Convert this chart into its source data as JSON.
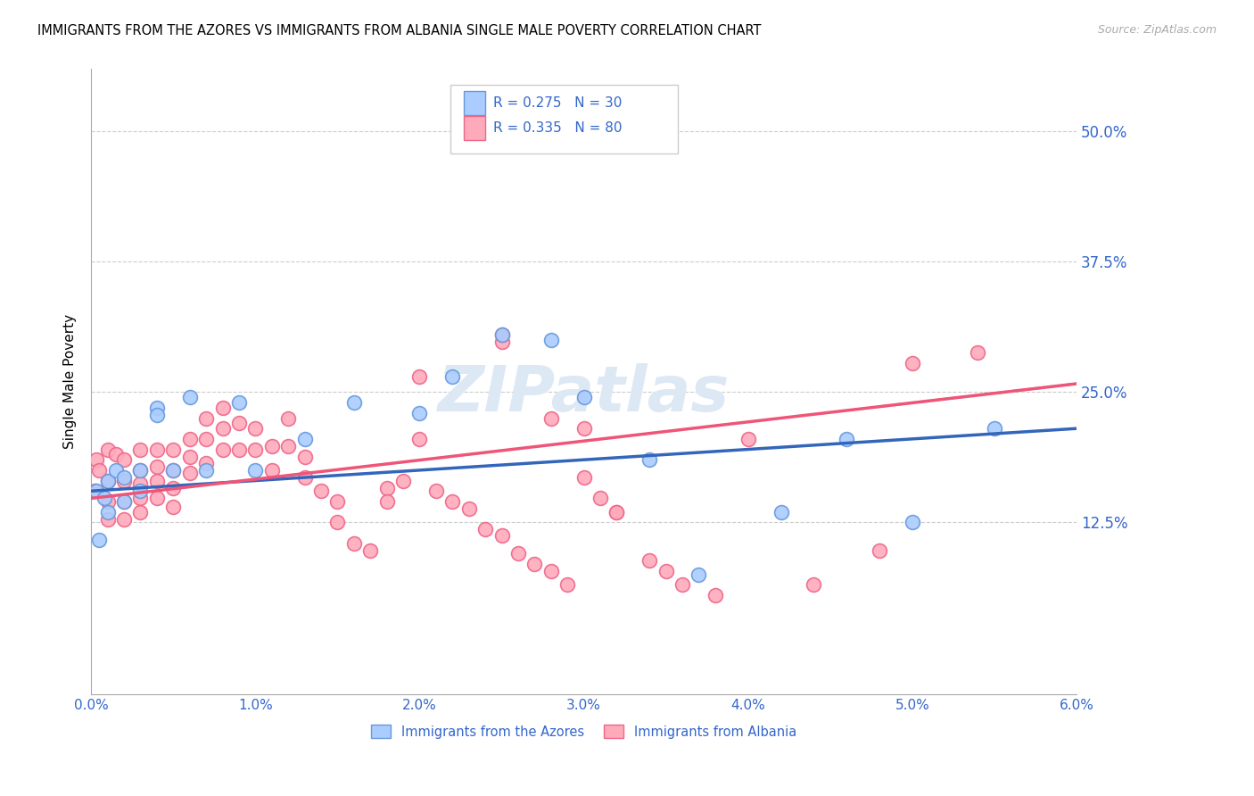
{
  "title": "IMMIGRANTS FROM THE AZORES VS IMMIGRANTS FROM ALBANIA SINGLE MALE POVERTY CORRELATION CHART",
  "source": "Source: ZipAtlas.com",
  "ylabel": "Single Male Poverty",
  "legend_azores": "Immigrants from the Azores",
  "legend_albania": "Immigrants from Albania",
  "azores_R": 0.275,
  "azores_N": 30,
  "albania_R": 0.335,
  "albania_N": 80,
  "color_azores_fill": "#aaccff",
  "color_azores_edge": "#6699dd",
  "color_albania_fill": "#ffaabb",
  "color_albania_edge": "#ee6688",
  "line_color_azores": "#3366bb",
  "line_color_albania": "#ee5577",
  "xlim": [
    0.0,
    0.06
  ],
  "ylim": [
    -0.04,
    0.56
  ],
  "xtick_labels": [
    "0.0%",
    "1.0%",
    "2.0%",
    "3.0%",
    "4.0%",
    "5.0%",
    "6.0%"
  ],
  "ytick_labels": [
    "12.5%",
    "25.0%",
    "37.5%",
    "50.0%"
  ],
  "azores_x": [
    0.0003,
    0.0005,
    0.0008,
    0.001,
    0.001,
    0.0015,
    0.002,
    0.002,
    0.003,
    0.003,
    0.004,
    0.004,
    0.005,
    0.006,
    0.007,
    0.009,
    0.01,
    0.013,
    0.016,
    0.02,
    0.022,
    0.025,
    0.028,
    0.03,
    0.034,
    0.037,
    0.042,
    0.046,
    0.05,
    0.055
  ],
  "azores_y": [
    0.155,
    0.108,
    0.148,
    0.165,
    0.135,
    0.175,
    0.168,
    0.145,
    0.175,
    0.155,
    0.235,
    0.228,
    0.175,
    0.245,
    0.175,
    0.24,
    0.175,
    0.205,
    0.24,
    0.23,
    0.265,
    0.305,
    0.3,
    0.245,
    0.185,
    0.075,
    0.135,
    0.205,
    0.125,
    0.215
  ],
  "albania_x": [
    0.0002,
    0.0003,
    0.0005,
    0.001,
    0.001,
    0.001,
    0.001,
    0.0015,
    0.002,
    0.002,
    0.002,
    0.002,
    0.003,
    0.003,
    0.003,
    0.003,
    0.003,
    0.004,
    0.004,
    0.004,
    0.004,
    0.005,
    0.005,
    0.005,
    0.005,
    0.006,
    0.006,
    0.006,
    0.007,
    0.007,
    0.007,
    0.008,
    0.008,
    0.008,
    0.009,
    0.009,
    0.01,
    0.01,
    0.011,
    0.011,
    0.012,
    0.012,
    0.013,
    0.013,
    0.014,
    0.015,
    0.015,
    0.016,
    0.017,
    0.018,
    0.018,
    0.019,
    0.02,
    0.021,
    0.022,
    0.023,
    0.024,
    0.025,
    0.025,
    0.026,
    0.027,
    0.028,
    0.029,
    0.03,
    0.031,
    0.032,
    0.034,
    0.035,
    0.036,
    0.038,
    0.02,
    0.025,
    0.028,
    0.03,
    0.032,
    0.04,
    0.044,
    0.048,
    0.05,
    0.054
  ],
  "albania_y": [
    0.155,
    0.185,
    0.175,
    0.195,
    0.165,
    0.145,
    0.128,
    0.19,
    0.185,
    0.165,
    0.145,
    0.128,
    0.195,
    0.175,
    0.162,
    0.148,
    0.135,
    0.195,
    0.178,
    0.165,
    0.148,
    0.195,
    0.175,
    0.158,
    0.14,
    0.205,
    0.188,
    0.172,
    0.225,
    0.205,
    0.182,
    0.235,
    0.215,
    0.195,
    0.22,
    0.195,
    0.215,
    0.195,
    0.198,
    0.175,
    0.225,
    0.198,
    0.188,
    0.168,
    0.155,
    0.145,
    0.125,
    0.105,
    0.098,
    0.158,
    0.145,
    0.165,
    0.205,
    0.155,
    0.145,
    0.138,
    0.118,
    0.112,
    0.298,
    0.095,
    0.085,
    0.078,
    0.065,
    0.168,
    0.148,
    0.135,
    0.088,
    0.078,
    0.065,
    0.055,
    0.265,
    0.305,
    0.225,
    0.215,
    0.135,
    0.205,
    0.065,
    0.098,
    0.278,
    0.288
  ]
}
